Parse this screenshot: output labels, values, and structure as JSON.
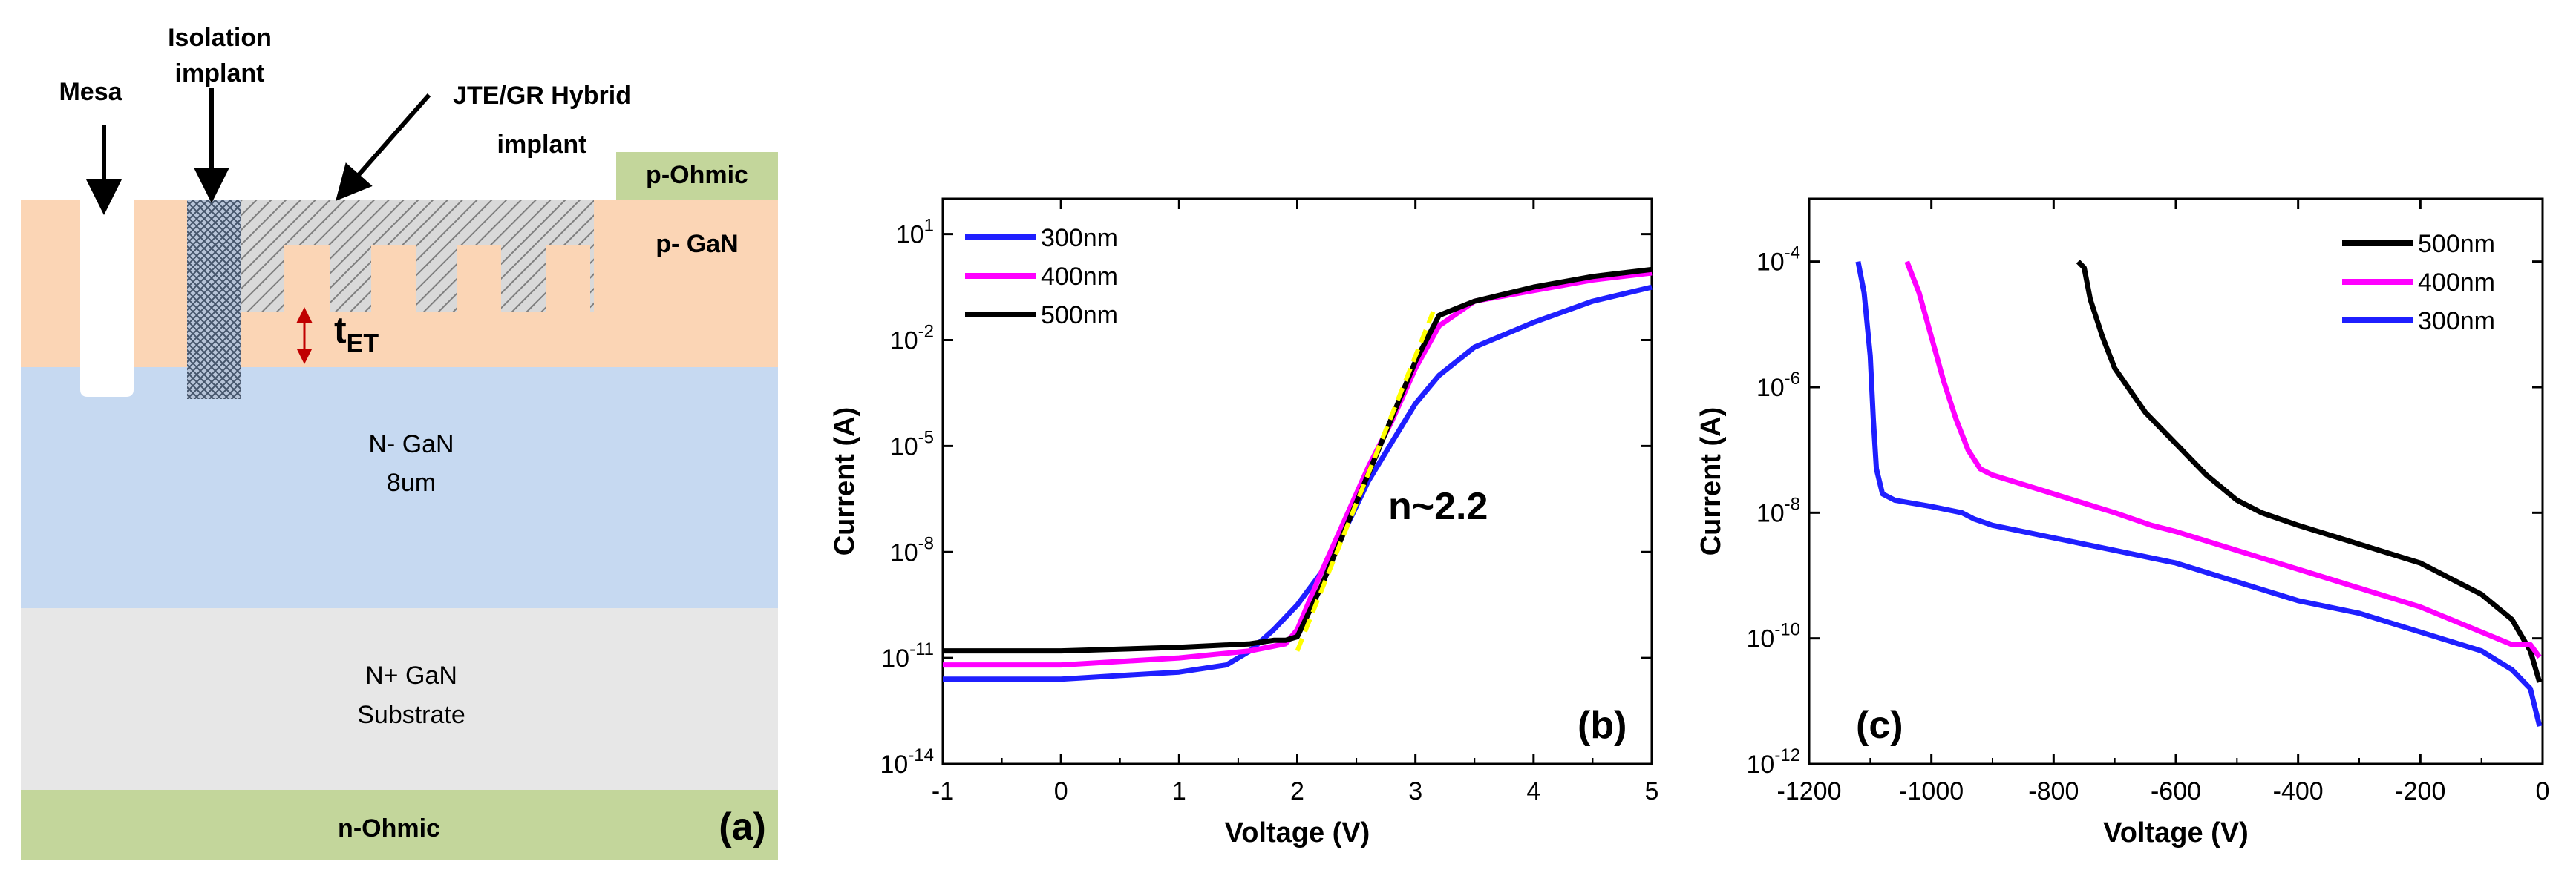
{
  "panel_a": {
    "labels": {
      "mesa": "Mesa",
      "isolation_line1": "Isolation",
      "isolation_line2": "implant",
      "jte_line1": "JTE/GR Hybrid",
      "jte_line2": "implant",
      "p_ohmic": "p-Ohmic",
      "p_gan": "p- GaN",
      "t_et_main": "t",
      "t_et_sub": "ET",
      "n_gan_line1": "N- GaN",
      "n_gan_line2": "8um",
      "nplus_line1": "N+ GaN",
      "nplus_line2": "Substrate",
      "n_ohmic": "n-Ohmic",
      "panel_label": "(a)"
    },
    "colors": {
      "p_gan": "#fbd5b5",
      "n_gan": "#c6d9f1",
      "nplus": "#e7e7e7",
      "ohmic": "#c3d69b",
      "arrow_red": "#c00000"
    }
  },
  "chart_data": [
    {
      "type": "line",
      "panel_label": "(b)",
      "title": "",
      "xlabel": "Voltage (V)",
      "ylabel": "Current (A)",
      "xlim": [
        -1,
        5
      ],
      "ylim_log10": [
        -14,
        2
      ],
      "x_ticks": [
        "-1",
        "0",
        "1",
        "2",
        "3",
        "4",
        "5"
      ],
      "y_ticks": [
        {
          "base": "10",
          "exp": "1"
        },
        {
          "base": "10",
          "exp": "-2"
        },
        {
          "base": "10",
          "exp": "-5"
        },
        {
          "base": "10",
          "exp": "-8"
        },
        {
          "base": "10",
          "exp": "-11"
        },
        {
          "base": "10",
          "exp": "-14"
        }
      ],
      "annotation": "n~2.2",
      "legend": [
        "300nm",
        "400nm",
        "500nm"
      ],
      "series": [
        {
          "name": "300nm",
          "color": "#1f1fff",
          "x": [
            -1,
            -0.5,
            0,
            0.5,
            1,
            1.4,
            1.6,
            1.8,
            2.0,
            2.2,
            2.4,
            2.6,
            2.8,
            3.0,
            3.2,
            3.5,
            4.0,
            4.5,
            5.0
          ],
          "log10_y": [
            -11.6,
            -11.6,
            -11.6,
            -11.5,
            -11.4,
            -11.2,
            -10.8,
            -10.2,
            -9.5,
            -8.6,
            -7.4,
            -6.0,
            -4.9,
            -3.8,
            -3.0,
            -2.2,
            -1.5,
            -0.9,
            -0.5
          ]
        },
        {
          "name": "400nm",
          "color": "#ff00ff",
          "x": [
            -1,
            0,
            1,
            1.6,
            1.9,
            2.0,
            2.2,
            2.4,
            2.6,
            2.8,
            3.0,
            3.2,
            3.5,
            4.0,
            4.5,
            5.0
          ],
          "log10_y": [
            -11.2,
            -11.2,
            -11.0,
            -10.8,
            -10.6,
            -10.2,
            -8.6,
            -7.1,
            -5.6,
            -4.3,
            -2.8,
            -1.6,
            -0.9,
            -0.6,
            -0.3,
            -0.1
          ]
        },
        {
          "name": "500nm",
          "color": "#000000",
          "x": [
            -1,
            0,
            1,
            1.6,
            1.8,
            1.9,
            2.0,
            2.2,
            2.4,
            2.6,
            2.8,
            3.0,
            3.2,
            3.5,
            4.0,
            4.5,
            5.0
          ],
          "log10_y": [
            -10.8,
            -10.8,
            -10.7,
            -10.6,
            -10.5,
            -10.5,
            -10.4,
            -9.0,
            -7.4,
            -5.8,
            -4.2,
            -2.6,
            -1.3,
            -0.9,
            -0.5,
            -0.2,
            0.0
          ]
        }
      ],
      "fit_line": {
        "name": "fit",
        "color": "#ffff00",
        "x": [
          2.0,
          3.15
        ],
        "log10_y": [
          -10.8,
          -1.2
        ]
      }
    },
    {
      "type": "line",
      "panel_label": "(c)",
      "title": "",
      "xlabel": "Voltage (V)",
      "ylabel": "Current (A)",
      "xlim": [
        -1200,
        0
      ],
      "ylim_log10": [
        -12,
        -3
      ],
      "x_ticks": [
        "-1200",
        "-1000",
        "-800",
        "-600",
        "-400",
        "-200",
        "0"
      ],
      "y_ticks": [
        {
          "base": "10",
          "exp": "-4"
        },
        {
          "base": "10",
          "exp": "-6"
        },
        {
          "base": "10",
          "exp": "-8"
        },
        {
          "base": "10",
          "exp": "-10"
        },
        {
          "base": "10",
          "exp": "-12"
        }
      ],
      "legend": [
        "500nm",
        "400nm",
        "300nm"
      ],
      "series": [
        {
          "name": "500nm",
          "color": "#000000",
          "x": [
            -760,
            -750,
            -740,
            -720,
            -700,
            -650,
            -600,
            -550,
            -500,
            -460,
            -400,
            -300,
            -200,
            -100,
            -50,
            -20,
            -5
          ],
          "log10_y": [
            -4.0,
            -4.1,
            -4.6,
            -5.2,
            -5.7,
            -6.4,
            -6.9,
            -7.4,
            -7.8,
            -8.0,
            -8.2,
            -8.5,
            -8.8,
            -9.3,
            -9.7,
            -10.2,
            -10.7
          ]
        },
        {
          "name": "400nm",
          "color": "#ff00ff",
          "x": [
            -1040,
            -1020,
            -1000,
            -980,
            -960,
            -940,
            -920,
            -900,
            -800,
            -700,
            -640,
            -600,
            -500,
            -400,
            -300,
            -200,
            -100,
            -50,
            -20,
            -5
          ],
          "log10_y": [
            -4.0,
            -4.5,
            -5.2,
            -5.9,
            -6.5,
            -7.0,
            -7.3,
            -7.4,
            -7.7,
            -8.0,
            -8.2,
            -8.3,
            -8.6,
            -8.9,
            -9.2,
            -9.5,
            -9.9,
            -10.1,
            -10.1,
            -10.3
          ]
        },
        {
          "name": "300nm",
          "color": "#1f1fff",
          "x": [
            -1120,
            -1110,
            -1100,
            -1095,
            -1090,
            -1080,
            -1060,
            -1000,
            -950,
            -930,
            -900,
            -800,
            -700,
            -600,
            -500,
            -400,
            -300,
            -200,
            -100,
            -50,
            -20,
            -5
          ],
          "log10_y": [
            -4.0,
            -4.5,
            -5.5,
            -6.5,
            -7.3,
            -7.7,
            -7.8,
            -7.9,
            -8.0,
            -8.1,
            -8.2,
            -8.4,
            -8.6,
            -8.8,
            -9.1,
            -9.4,
            -9.6,
            -9.9,
            -10.2,
            -10.5,
            -10.8,
            -11.4
          ]
        }
      ]
    }
  ]
}
